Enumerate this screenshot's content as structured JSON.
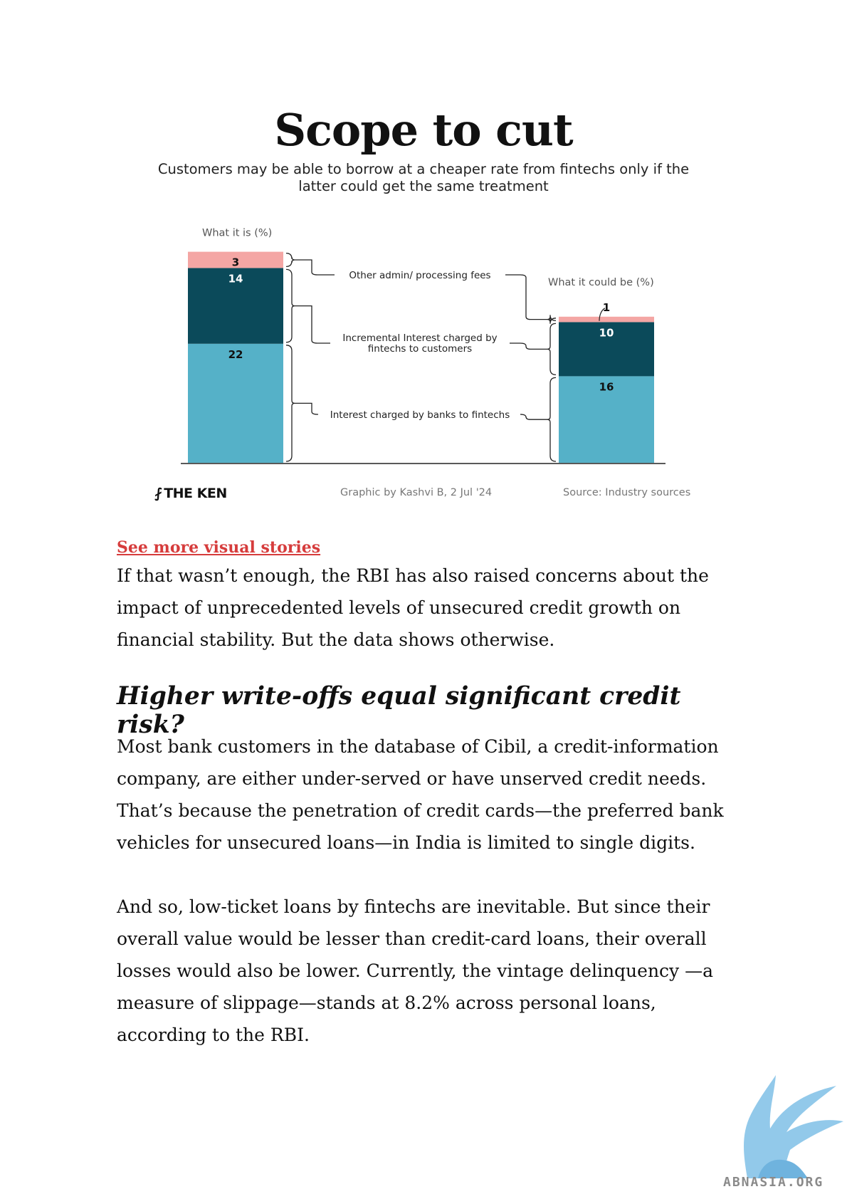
{
  "chart": {
    "title": "Scope to cut",
    "subtitle": "Customers may be able to borrow at a cheaper rate from fintechs only if the latter could get the same treatment",
    "footer": {
      "logo": "THE KEN",
      "credit": "Graphic by Kashvi B, 2 Jul '24",
      "source": "Source: Industry sources"
    }
  },
  "chart_data": {
    "type": "bar",
    "stacked": true,
    "categories": [
      "What it is (%)",
      "What it could be (%)"
    ],
    "series": [
      {
        "name": "Interest charged by banks to fintechs",
        "values": [
          22,
          16
        ],
        "color": "#55b1c8"
      },
      {
        "name": "Incremental Interest charged by fintechs to customers",
        "values": [
          14,
          10
        ],
        "color": "#0b4a5a"
      },
      {
        "name": "Other admin/ processing fees",
        "values": [
          3,
          1
        ],
        "color": "#f4a6a4"
      }
    ],
    "ylim": [
      0,
      39
    ],
    "grid": false,
    "legend": "annotations between bars"
  },
  "article": {
    "link_text": "See more visual stories",
    "paragraph1": "If that wasn’t enough, the RBI has also raised concerns about the impact of unprecedented levels of unsecured credit growth on financial stability. But the data shows otherwise.",
    "heading": "Higher write-offs equal significant credit risk?",
    "paragraph2": "Most bank customers in the database of Cibil, a credit-information company, are either under-served or have unserved credit needs. That’s because the penetration of credit cards—the preferred bank vehicles for unsecured loans—in India is limited to single digits.",
    "paragraph3": "And so, low-ticket loans by fintechs are inevitable. But since their overall value would be lesser than credit-card loans, their overall losses would also be lower. Currently, the vintage delinquency —a measure of slippage—stands at 8.2% across personal loans, according to the RBI."
  },
  "watermark": {
    "text": "ABNASIA.ORG",
    "icon": "griffin-logo-icon"
  }
}
